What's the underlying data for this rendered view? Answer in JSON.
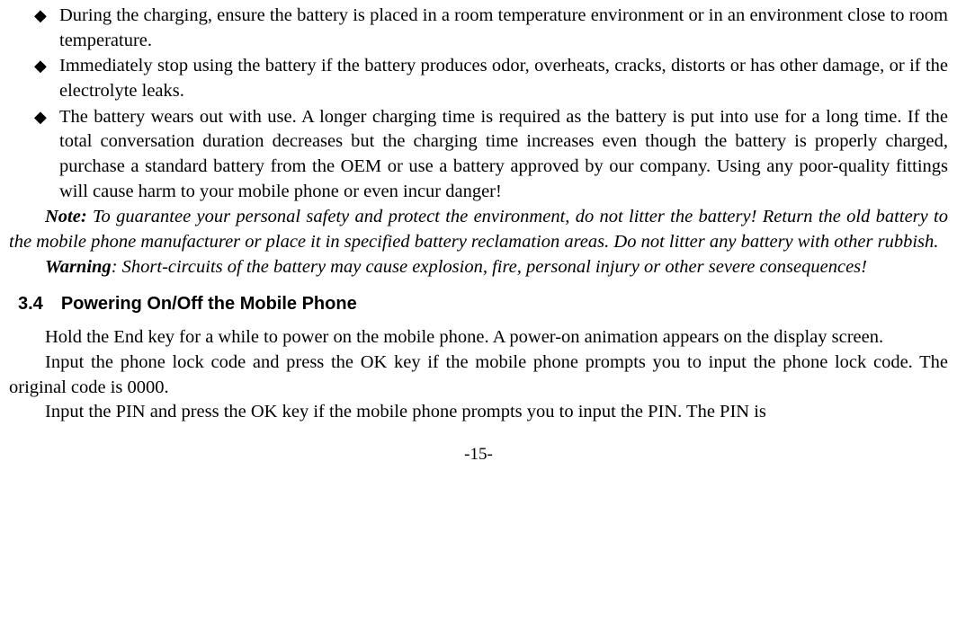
{
  "bullets": [
    "During the charging, ensure the battery is placed in a room temperature environment or in an environment close to room temperature.",
    "Immediately stop using the battery if the battery produces odor, overheats, cracks, distorts or has other damage, or if the electrolyte leaks.",
    "The battery wears out with use. A longer charging time is required as the battery is put into use for a long time. If the total conversation duration decreases but the charging time increases even though the battery is properly charged, purchase a standard battery from the OEM or use a battery approved by our company. Using any poor-quality fittings will cause harm to your mobile phone or even incur danger!"
  ],
  "note": {
    "label": "Note:",
    "text": " To guarantee your personal safety and protect the environment, do not litter the battery! Return the old battery to the mobile phone manufacturer or place it in specified battery reclamation areas. Do not litter any battery with other rubbish."
  },
  "warning": {
    "label": "Warning",
    "text": ": Short-circuits of the battery may cause explosion, fire, personal injury or other severe consequences!"
  },
  "section": {
    "number": "3.4",
    "title": "Powering On/Off the Mobile Phone"
  },
  "body": [
    "Hold the End key for a while to power on the mobile phone. A power-on animation appears on the display screen.",
    "Input the phone lock code and press the OK key if the mobile phone prompts you to input the phone lock code. The original code is 0000.",
    "Input the PIN and press the OK key if the mobile phone prompts you to input the PIN. The PIN is"
  ],
  "page_number": "-15-",
  "bullet_glyph": "◆"
}
